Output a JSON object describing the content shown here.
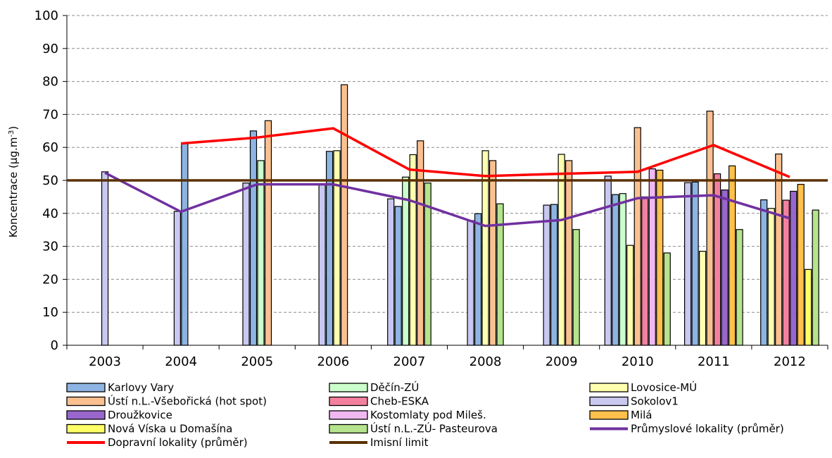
{
  "chart_data": {
    "type": "bar",
    "title": "",
    "xlabel": "",
    "ylabel": "Koncentrace (µg.m",
    "ylabel_sup": "-3",
    "ylabel_suffix": ")",
    "ylim": [
      0,
      100
    ],
    "yticks": [
      0,
      10,
      20,
      30,
      40,
      50,
      60,
      70,
      80,
      90,
      100
    ],
    "grid": true,
    "legend_position": "bottom",
    "categories": [
      "2003",
      "2004",
      "2005",
      "2006",
      "2007",
      "2008",
      "2009",
      "2010",
      "2011",
      "2012"
    ],
    "series": [
      {
        "name": "Karlovy Vary",
        "color": "#8DB4E2",
        "values": [
          null,
          61.2,
          65,
          58.8,
          42.1,
          39.9,
          42.7,
          45.7,
          49.5,
          44.1
        ]
      },
      {
        "name": "Ústí n.L.-Všebořická (hot spot)",
        "color": "#FAC090",
        "values": [
          null,
          null,
          68.1,
          79,
          62,
          56,
          56,
          66,
          71,
          58
        ]
      },
      {
        "name": "Droužkovice",
        "color": "#9966CC",
        "values": [
          null,
          null,
          null,
          null,
          null,
          null,
          null,
          null,
          47.1,
          46.7
        ]
      },
      {
        "name": "Nová Víska u Domašína",
        "color": "#FFFF66",
        "values": [
          null,
          null,
          null,
          null,
          null,
          null,
          null,
          null,
          null,
          23
        ]
      },
      {
        "name": "Děčín-ZÚ",
        "color": "#CCFFCC",
        "values": [
          null,
          null,
          56,
          null,
          51,
          null,
          null,
          46,
          null,
          null
        ]
      },
      {
        "name": "Cheb-ESKA",
        "color": "#F4809F",
        "values": [
          null,
          null,
          null,
          null,
          null,
          null,
          null,
          45,
          52,
          44
        ]
      },
      {
        "name": "Kostomlaty pod Mileš.",
        "color": "#F0B8F0",
        "values": [
          null,
          null,
          null,
          null,
          null,
          null,
          null,
          53.5,
          null,
          null
        ]
      },
      {
        "name": "Ústí n.L.-ZÚ- Pasteurova",
        "color": "#B5E48C",
        "values": [
          null,
          null,
          null,
          null,
          49.2,
          42.9,
          35.1,
          28,
          35.1,
          41
        ]
      },
      {
        "name": "Lovosice-MÚ",
        "color": "#FFFFB0",
        "values": [
          null,
          null,
          null,
          59,
          57.8,
          59,
          57.9,
          30.3,
          28.5,
          41.5
        ]
      },
      {
        "name": "Sokolov1",
        "color": "#C8C8F0",
        "values": [
          52.6,
          40.6,
          49.2,
          48.9,
          44.4,
          37.8,
          42.5,
          51.3,
          49.3,
          null
        ]
      },
      {
        "name": "Milá",
        "color": "#FFC04C",
        "values": [
          null,
          null,
          null,
          null,
          null,
          null,
          null,
          53.1,
          54.4,
          48.8
        ]
      }
    ],
    "bar_layout": [
      {
        "series": "Sokolov1",
        "bins": [
          0,
          1,
          2,
          3
        ]
      },
      {
        "series": "Karlovy Vary",
        "bins": [
          2,
          3,
          6
        ]
      },
      {
        "series": "Sokolov1",
        "bins": [
          4,
          5
        ]
      },
      {
        "series": "Karlovy Vary",
        "bins": [
          6,
          9
        ]
      },
      {
        "series": "Ústí n.L.-ZÚ- Pasteurova",
        "bins": [
          6,
          9
        ]
      },
      {
        "series": "Ústí n.L.-ZÚ- Pasteurova",
        "bins": [
          13,
          15
        ]
      },
      {
        "series": "Ústí n.L.-ZÚ- Pasteurova",
        "bins": [
          16,
          18
        ]
      }
    ],
    "lines": [
      {
        "name": "Průmyslové lokality (průměr)",
        "color": "#7030A0",
        "values": [
          52.3,
          40.5,
          48.8,
          48.8,
          44,
          36.2,
          38,
          44.6,
          45.5,
          38.5
        ]
      },
      {
        "name": "Dopravní lokality (průměr)",
        "color": "#FF0000",
        "values": [
          null,
          61.2,
          63,
          65.8,
          53.3,
          51.3,
          52,
          52.6,
          60.7,
          51
        ]
      },
      {
        "name": "Imisní limit",
        "color": "#5A3000",
        "constant": 50
      }
    ],
    "legend": [
      {
        "label": "Karlovy Vary",
        "kind": "box",
        "color": "#8DB4E2"
      },
      {
        "label": "Děčín-ZÚ",
        "kind": "box",
        "color": "#CCFFCC"
      },
      {
        "label": "Lovosice-MÚ",
        "kind": "box",
        "color": "#FFFFB0"
      },
      {
        "label": "Ústí n.L.-Všebořická (hot spot)",
        "kind": "box",
        "color": "#FAC090"
      },
      {
        "label": "Cheb-ESKA",
        "kind": "box",
        "color": "#F4809F"
      },
      {
        "label": "Sokolov1",
        "kind": "box",
        "color": "#C8C8F0"
      },
      {
        "label": "Droužkovice",
        "kind": "box",
        "color": "#9966CC"
      },
      {
        "label": "Kostomlaty pod Mileš.",
        "kind": "box",
        "color": "#F0B8F0"
      },
      {
        "label": "Milá",
        "kind": "box",
        "color": "#FFC04C"
      },
      {
        "label": "Nová Víska u Domašína",
        "kind": "box",
        "color": "#FFFF66"
      },
      {
        "label": "Ústí n.L.-ZÚ- Pasteurova",
        "kind": "box",
        "color": "#B5E48C"
      },
      {
        "label": "Průmyslové lokality (průměr)",
        "kind": "line",
        "color": "#7030A0"
      },
      {
        "label": "Dopravní lokality (průměr)",
        "kind": "line",
        "color": "#FF0000"
      },
      {
        "label": "Imisní limit",
        "kind": "line",
        "color": "#5A3000"
      }
    ]
  }
}
